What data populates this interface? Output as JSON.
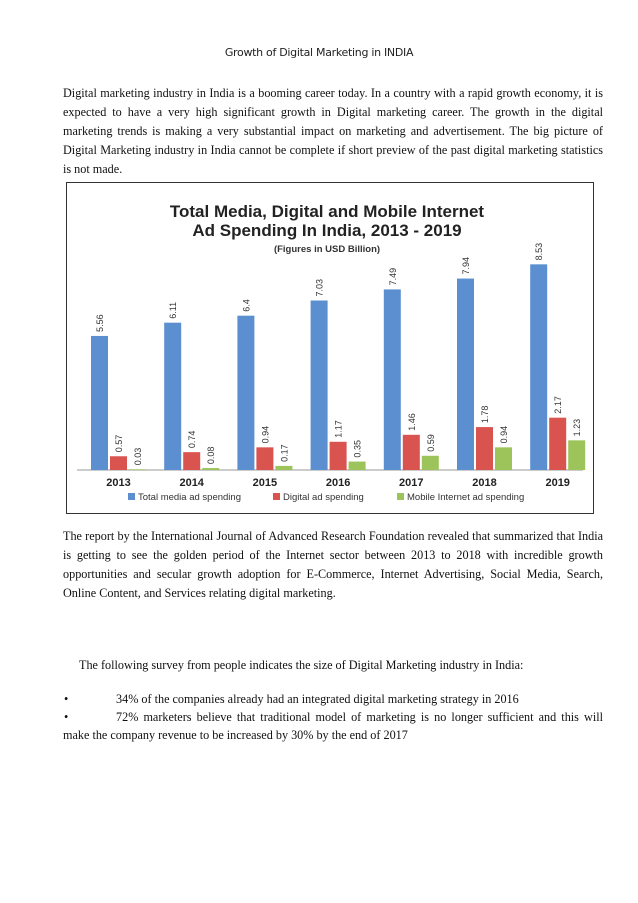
{
  "page": {
    "title": "Growth of Digital Marketing in INDIA",
    "para1": "Digital marketing industry in India is a booming career today. In a country with a rapid growth economy, it is expected to have a very high significant growth in Digital marketing career. The growth in the digital marketing trends is making a very substantial impact on marketing and advertisement. The big picture of Digital Marketing industry in India cannot be complete if short preview of the past digital marketing statistics is not made.",
    "para2": "The report by the International Journal of Advanced Research Foundation revealed that summarized that India is getting to see the golden period of the Internet sector between 2013 to 2018 with incredible growth opportunities and secular growth adoption for E-Commerce, Internet Advertising, Social Media, Search, Online Content, and Services relating digital marketing.",
    "survey_intro": "The following survey from people indicates the size of Digital Marketing industry in India:",
    "bullets": [
      "34% of the companies already had an integrated digital marketing strategy in 2016",
      "72% marketers believe that traditional model of marketing is no longer sufficient and this will make the company revenue to be increased by 30% by the end of 2017"
    ],
    "bullet_symbol": "•"
  },
  "chart_data": {
    "type": "bar",
    "title": "Total Media, Digital and Mobile Internet Ad Spending In India, 2013 - 2019",
    "title_line1": "Total Media, Digital and Mobile Internet",
    "title_line2": "Ad Spending In India, 2013 - 2019",
    "subtitle": "(Figures in USD Billion)",
    "categories": [
      "2013",
      "2014",
      "2015",
      "2016",
      "2017",
      "2018",
      "2019"
    ],
    "series": [
      {
        "name": "Total media ad spending",
        "color": "#5b8fd0",
        "values": [
          5.56,
          6.11,
          6.4,
          7.03,
          7.49,
          7.94,
          8.53
        ]
      },
      {
        "name": "Digital ad spending",
        "color": "#d9534f",
        "values": [
          0.57,
          0.74,
          0.94,
          1.17,
          1.46,
          1.78,
          2.17
        ]
      },
      {
        "name": "Mobile Internet ad spending",
        "color": "#9cc45a",
        "values": [
          0.03,
          0.08,
          0.17,
          0.35,
          0.59,
          0.94,
          1.23
        ]
      }
    ],
    "ylim": [
      0,
      9
    ],
    "legend_position": "bottom"
  }
}
